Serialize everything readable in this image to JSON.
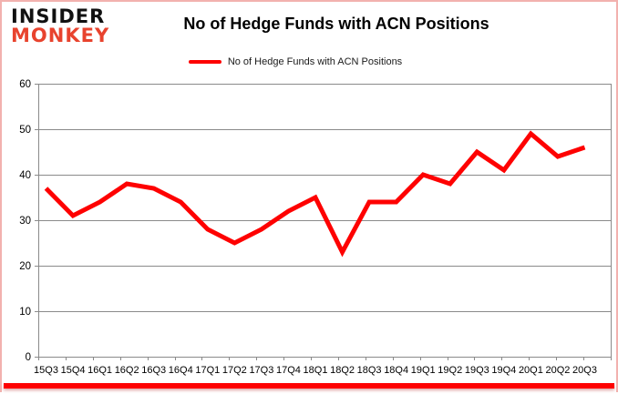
{
  "branding": {
    "logo_line1": "INSIDER",
    "logo_line2": "MONKEY"
  },
  "header": {
    "title": "No of Hedge Funds with ACN Positions"
  },
  "legend": {
    "label": "No of Hedge Funds with ACN Positions"
  },
  "colors": {
    "line": "#fe0101",
    "logo_accent": "#e8432e",
    "grid": "#8a8a8a",
    "axis_text": "#000000",
    "border": "#f2b1ae",
    "bottom_bar": "#fe0101"
  },
  "chart_data": {
    "type": "line",
    "title": "No of Hedge Funds with ACN Positions",
    "xlabel": "",
    "ylabel": "",
    "categories": [
      "15Q3",
      "15Q4",
      "16Q1",
      "16Q2",
      "16Q3",
      "16Q4",
      "17Q1",
      "17Q2",
      "17Q3",
      "17Q4",
      "18Q1",
      "18Q2",
      "18Q3",
      "18Q4",
      "19Q1",
      "19Q2",
      "19Q3",
      "19Q4",
      "20Q1",
      "20Q2",
      "20Q3"
    ],
    "series": [
      {
        "name": "No of Hedge Funds with ACN Positions",
        "values": [
          37,
          31,
          34,
          38,
          37,
          34,
          28,
          25,
          28,
          32,
          35,
          23,
          34,
          34,
          40,
          38,
          45,
          41,
          49,
          44,
          46
        ]
      }
    ],
    "ylim": [
      0,
      60
    ],
    "yticks": [
      0,
      10,
      20,
      30,
      40,
      50,
      60
    ],
    "grid": true,
    "legend_position": "top-center"
  }
}
